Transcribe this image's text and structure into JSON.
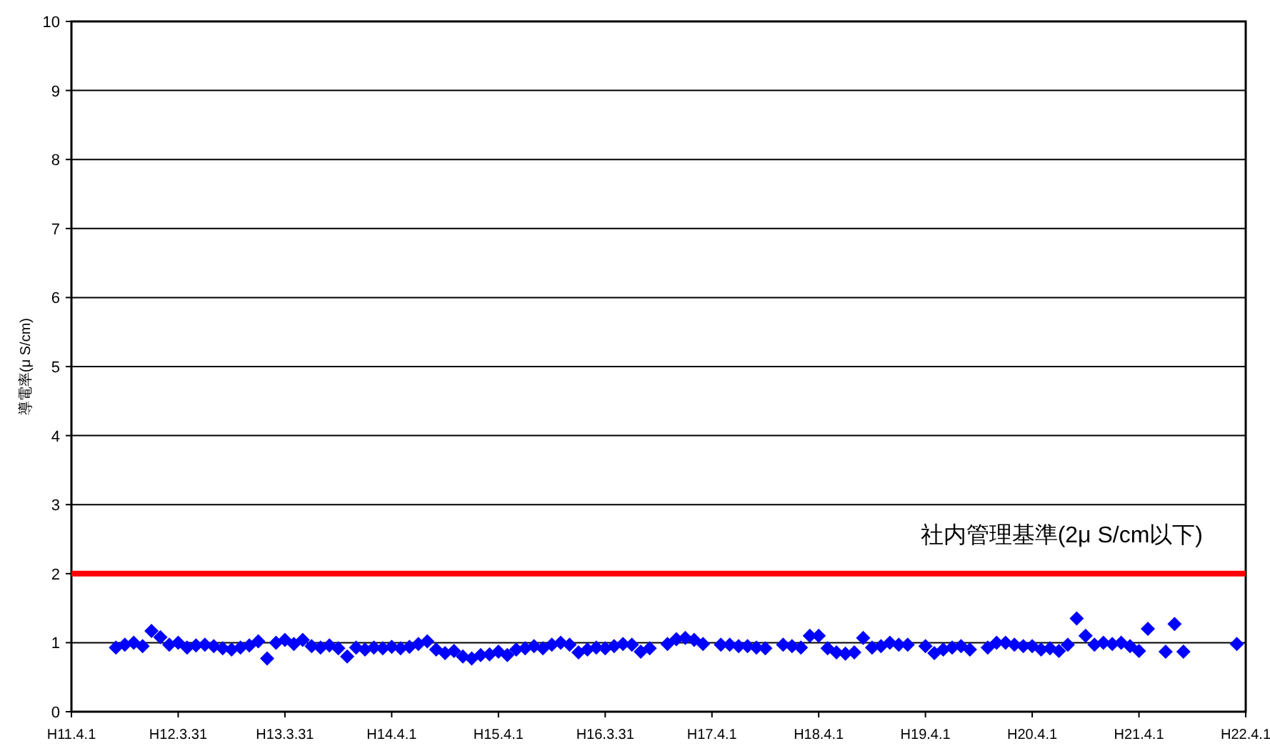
{
  "chart_data": {
    "type": "scatter",
    "ylabel": "導電率(μ S/cm)",
    "ylim": [
      0,
      10
    ],
    "categories": [
      "H11.4.1",
      null,
      null,
      null,
      null,
      null,
      null,
      null,
      null,
      null,
      null,
      null,
      "H12.3.31",
      null,
      null,
      null,
      null,
      null,
      null,
      null,
      null,
      null,
      null,
      null,
      "H13.3.31",
      null,
      null,
      null,
      null,
      null,
      null,
      null,
      null,
      null,
      null,
      null,
      "H14.4.1",
      null,
      null,
      null,
      null,
      null,
      null,
      null,
      null,
      null,
      null,
      null,
      "H15.4.1",
      null,
      null,
      null,
      null,
      null,
      null,
      null,
      null,
      null,
      null,
      null,
      "H16.3.31",
      null,
      null,
      null,
      null,
      null,
      null,
      null,
      null,
      null,
      null,
      null,
      "H17.4.1",
      null,
      null,
      null,
      null,
      null,
      null,
      null,
      null,
      null,
      null,
      null,
      "H18.4.1",
      null,
      null,
      null,
      null,
      null,
      null,
      null,
      null,
      null,
      null,
      null,
      "H19.4.1",
      null,
      null,
      null,
      null,
      null,
      null,
      null,
      null,
      null,
      null,
      null,
      "H20.4.1",
      null,
      null,
      null,
      null,
      null,
      null,
      null,
      null,
      null,
      null,
      null,
      "H21.4.1",
      null,
      null,
      null,
      null,
      null,
      null,
      null,
      null,
      null,
      null,
      null,
      "H22.4.1"
    ],
    "yticks": [
      0,
      1,
      2,
      3,
      4,
      5,
      6,
      7,
      8,
      9,
      10
    ],
    "grid": "y",
    "marker": "diamond",
    "series": [
      {
        "color": "#0000ff",
        "values": [
          null,
          null,
          null,
          null,
          null,
          0.93,
          0.97,
          1.0,
          0.95,
          1.17,
          1.08,
          0.97,
          1.0,
          0.93,
          0.96,
          0.97,
          0.95,
          0.92,
          0.9,
          0.93,
          0.96,
          1.02,
          0.77,
          1.0,
          1.04,
          0.98,
          1.04,
          0.95,
          0.93,
          0.96,
          0.92,
          0.8,
          0.93,
          0.9,
          0.93,
          0.92,
          0.94,
          0.92,
          0.94,
          0.98,
          1.02,
          0.9,
          0.85,
          0.88,
          0.8,
          0.77,
          0.82,
          0.83,
          0.87,
          0.82,
          0.9,
          0.92,
          0.95,
          0.92,
          0.97,
          1.0,
          0.97,
          0.86,
          0.9,
          0.93,
          0.92,
          0.95,
          0.98,
          0.97,
          0.87,
          0.92,
          null,
          0.98,
          1.05,
          1.07,
          1.04,
          0.98,
          null,
          0.97,
          0.97,
          0.95,
          0.95,
          0.93,
          0.92,
          null,
          0.97,
          0.95,
          0.93,
          1.1,
          1.1,
          0.92,
          0.86,
          0.84,
          0.86,
          1.07,
          0.93,
          0.95,
          1.0,
          0.97,
          0.97,
          null,
          0.95,
          0.85,
          0.9,
          0.93,
          0.95,
          0.9,
          null,
          0.93,
          1.0,
          1.0,
          0.97,
          0.95,
          0.95,
          0.9,
          0.92,
          0.88,
          0.97,
          1.35,
          1.1,
          0.97,
          1.0,
          0.98,
          1.0,
          0.95,
          0.88,
          1.2,
          null,
          0.87,
          1.27,
          0.87,
          null,
          null,
          null,
          null,
          null,
          0.98,
          null
        ]
      }
    ],
    "ref_lines": [
      {
        "axis": "y",
        "value": 2,
        "label": "社内管理基準(2μ S/cm以下)",
        "color": "#ff0000"
      }
    ]
  }
}
